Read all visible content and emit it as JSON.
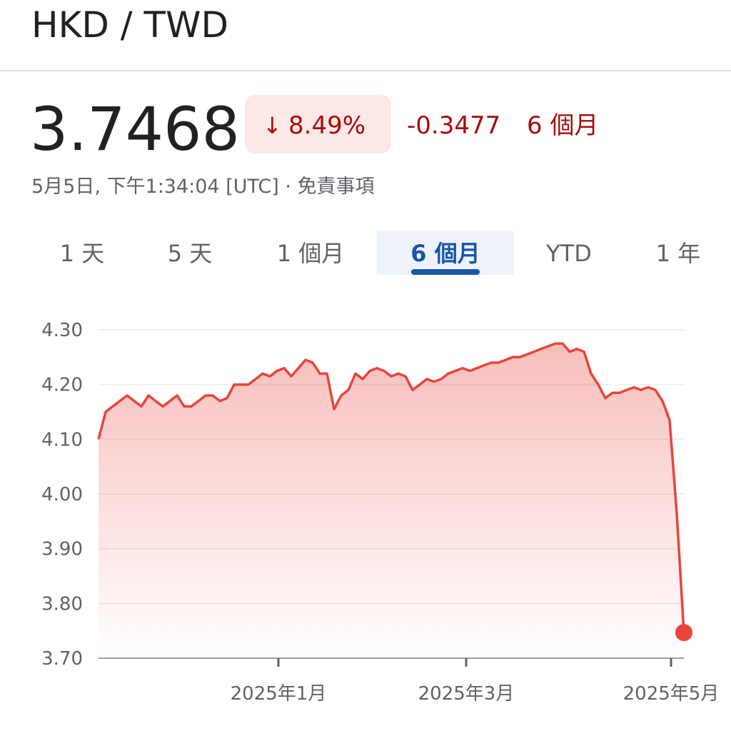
{
  "header": {
    "title": "HKD / TWD"
  },
  "quote": {
    "price": "3.7468",
    "change_percent": "8.49%",
    "change_abs": "-0.3477",
    "period": "6 個月",
    "timestamp": "5月5日, 下午1:34:04 [UTC] · 免責事項"
  },
  "tabs": [
    "1 天",
    "5 天",
    "1 個月",
    "6 個月",
    "YTD",
    "1 年"
  ],
  "selected_tab": 3,
  "chart_data": {
    "type": "line",
    "color": "#e8453c",
    "values": [
      4.1,
      4.15,
      4.16,
      4.17,
      4.18,
      4.17,
      4.16,
      4.18,
      4.17,
      4.16,
      4.17,
      4.18,
      4.16,
      4.16,
      4.17,
      4.18,
      4.18,
      4.17,
      4.175,
      4.2,
      4.2,
      4.2,
      4.21,
      4.22,
      4.215,
      4.225,
      4.23,
      4.215,
      4.23,
      4.245,
      4.24,
      4.22,
      4.22,
      4.155,
      4.18,
      4.19,
      4.22,
      4.21,
      4.225,
      4.23,
      4.225,
      4.215,
      4.22,
      4.215,
      4.19,
      4.2,
      4.21,
      4.205,
      4.21,
      4.22,
      4.225,
      4.23,
      4.225,
      4.23,
      4.235,
      4.24,
      4.24,
      4.245,
      4.25,
      4.25,
      4.255,
      4.26,
      4.265,
      4.27,
      4.275,
      4.275,
      4.26,
      4.265,
      4.26,
      4.22,
      4.2,
      4.175,
      4.185,
      4.185,
      4.19,
      4.195,
      4.19,
      4.195,
      4.19,
      4.17,
      4.135,
      3.965,
      3.7468
    ],
    "xlim": [
      0,
      82
    ],
    "xticks": [
      {
        "value": 25.2,
        "label": "2025年1月"
      },
      {
        "value": 51.5,
        "label": "2025年3月"
      },
      {
        "value": 80.2,
        "label": "2025年5月"
      }
    ],
    "ylim": [
      3.7,
      4.3
    ],
    "yticks": [
      {
        "value": 3.7,
        "label": "3.70"
      },
      {
        "value": 3.8,
        "label": "3.80"
      },
      {
        "value": 3.9,
        "label": "3.90"
      },
      {
        "value": 4.0,
        "label": "4.00"
      },
      {
        "value": 4.1,
        "label": "4.10"
      },
      {
        "value": 4.2,
        "label": "4.20"
      },
      {
        "value": 4.3,
        "label": "4.30"
      }
    ],
    "grid": true
  }
}
